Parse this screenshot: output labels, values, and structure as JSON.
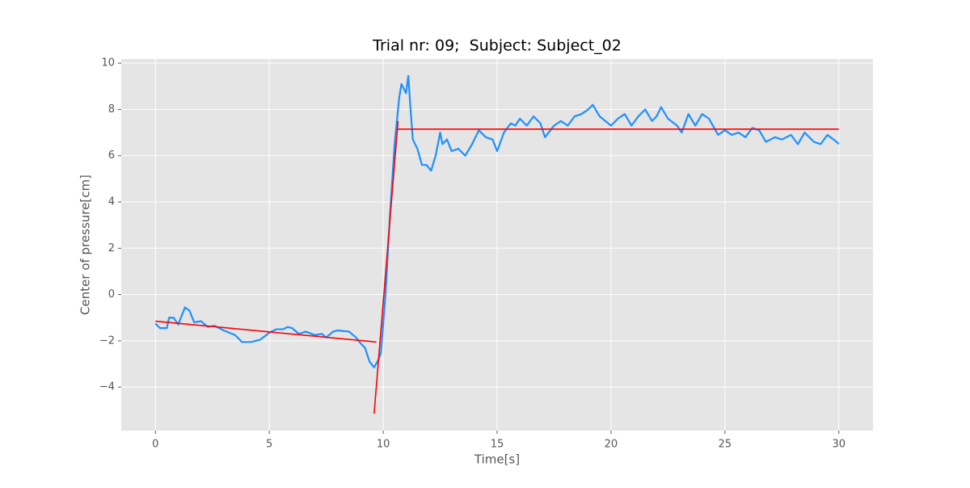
{
  "chart_data": {
    "type": "line",
    "title": "Trial nr: 09;  Subject: Subject_02",
    "xlabel": "Time[s]",
    "ylabel": "Center of pressure[cm]",
    "xlim": [
      -1.5,
      31.5
    ],
    "ylim": [
      -5.88,
      10.18
    ],
    "xticks": [
      0,
      5,
      10,
      15,
      20,
      25,
      30
    ],
    "yticks": [
      {
        "value": -4,
        "label": "−4"
      },
      {
        "value": -2,
        "label": "−2"
      },
      0,
      2,
      4,
      6,
      8,
      10
    ],
    "grid": true,
    "series": [
      {
        "color": "#1e90ff",
        "x": [
          0,
          0.2,
          0.5,
          0.6,
          0.8,
          1.0,
          1.3,
          1.5,
          1.7,
          2.0,
          2.3,
          2.6,
          3.0,
          3.5,
          3.8,
          4.2,
          4.6,
          5.0,
          5.3,
          5.6,
          5.8,
          6.0,
          6.3,
          6.6,
          7.0,
          7.3,
          7.5,
          7.8,
          8.0,
          8.5,
          8.8,
          9.0,
          9.2,
          9.4,
          9.6,
          9.8,
          9.9,
          10.1,
          10.3,
          10.5,
          10.7,
          10.8,
          11.0,
          11.1,
          11.2,
          11.3,
          11.5,
          11.7,
          11.9,
          12.1,
          12.3,
          12.5,
          12.6,
          12.8,
          13.0,
          13.3,
          13.6,
          13.9,
          14.2,
          14.5,
          14.8,
          15.0,
          15.3,
          15.6,
          15.8,
          16.0,
          16.3,
          16.6,
          16.9,
          17.1,
          17.5,
          17.8,
          18.1,
          18.4,
          18.7,
          19.0,
          19.2,
          19.5,
          20.0,
          20.3,
          20.6,
          20.9,
          21.2,
          21.5,
          21.8,
          22.0,
          22.2,
          22.5,
          22.9,
          23.1,
          23.4,
          23.7,
          24.0,
          24.3,
          24.7,
          25.0,
          25.3,
          25.6,
          25.9,
          26.2,
          26.5,
          26.8,
          27.2,
          27.5,
          27.9,
          28.2,
          28.5,
          28.9,
          29.2,
          29.5,
          29.9,
          30.0
        ],
        "values": [
          -1.25,
          -1.45,
          -1.45,
          -1.0,
          -1.0,
          -1.3,
          -0.55,
          -0.7,
          -1.2,
          -1.15,
          -1.4,
          -1.35,
          -1.55,
          -1.75,
          -2.05,
          -2.05,
          -1.95,
          -1.65,
          -1.5,
          -1.5,
          -1.4,
          -1.45,
          -1.7,
          -1.6,
          -1.75,
          -1.7,
          -1.85,
          -1.6,
          -1.55,
          -1.6,
          -1.85,
          -2.1,
          -2.3,
          -2.9,
          -3.15,
          -2.8,
          -2.5,
          0,
          3.5,
          6.5,
          8.5,
          9.1,
          8.7,
          9.45,
          8.0,
          6.7,
          6.3,
          5.6,
          5.6,
          5.35,
          6.0,
          7.0,
          6.5,
          6.7,
          6.2,
          6.3,
          6.0,
          6.5,
          7.1,
          6.8,
          6.7,
          6.2,
          7.0,
          7.4,
          7.3,
          7.6,
          7.3,
          7.7,
          7.4,
          6.8,
          7.3,
          7.5,
          7.3,
          7.7,
          7.8,
          8.0,
          8.2,
          7.7,
          7.3,
          7.6,
          7.8,
          7.3,
          7.7,
          8.0,
          7.5,
          7.7,
          8.1,
          7.6,
          7.3,
          7.0,
          7.8,
          7.3,
          7.8,
          7.6,
          6.9,
          7.1,
          6.9,
          7.0,
          6.8,
          7.2,
          7.1,
          6.6,
          6.8,
          6.7,
          6.9,
          6.5,
          7.0,
          6.6,
          6.5,
          6.9,
          6.6,
          6.5
        ]
      },
      {
        "color": "#ff0000",
        "x": [
          0,
          9.7
        ],
        "values": [
          -1.15,
          -2.05
        ]
      },
      {
        "color": "#ff0000",
        "x": [
          9.6,
          10.65
        ],
        "values": [
          -5.15,
          7.5
        ]
      },
      {
        "color": "#ff0000",
        "x": [
          10.65,
          30
        ],
        "values": [
          7.15,
          7.15
        ]
      }
    ]
  }
}
